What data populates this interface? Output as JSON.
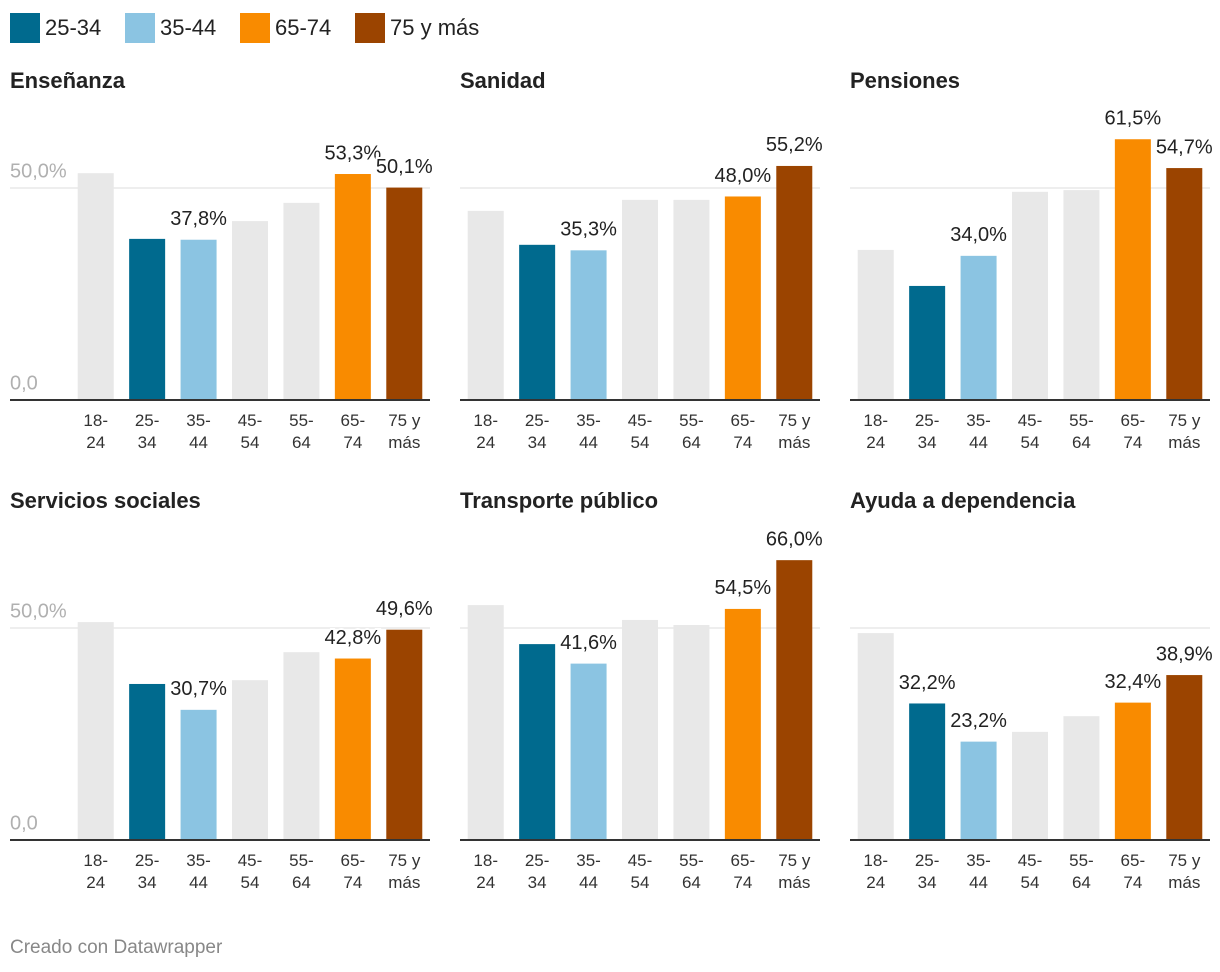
{
  "legend": [
    {
      "name": "25-34",
      "color": "#006a8e"
    },
    {
      "name": "35-44",
      "color": "#8bc4e2"
    },
    {
      "name": "65-74",
      "color": "#f98b00"
    },
    {
      "name": "75 y más",
      "color": "#9b4400"
    }
  ],
  "chart_data": [
    {
      "type": "bar",
      "title": "Enseñanza",
      "categories": [
        "18-24",
        "25-34",
        "35-44",
        "45-54",
        "55-64",
        "65-74",
        "75 y más"
      ],
      "values": [
        53.5,
        38.0,
        37.8,
        42.2,
        46.5,
        53.3,
        50.1
      ],
      "value_labels": [
        null,
        null,
        "37,8%",
        null,
        null,
        "53,3%",
        "50,1%"
      ],
      "colors": [
        "#e8e8e8",
        "#006a8e",
        "#8bc4e2",
        "#e8e8e8",
        "#e8e8e8",
        "#f98b00",
        "#9b4400"
      ],
      "ylim": [
        0,
        70
      ],
      "yticks": [
        {
          "value": 0,
          "label": "0,0"
        },
        {
          "value": 50,
          "label": "50,0%"
        }
      ]
    },
    {
      "type": "bar",
      "title": "Sanidad",
      "categories": [
        "18-24",
        "25-34",
        "35-44",
        "45-54",
        "55-64",
        "65-74",
        "75 y más"
      ],
      "values": [
        44.6,
        36.6,
        35.3,
        47.2,
        47.2,
        48.0,
        55.2
      ],
      "value_labels": [
        null,
        null,
        "35,3%",
        null,
        null,
        "48,0%",
        "55,2%"
      ],
      "colors": [
        "#e8e8e8",
        "#006a8e",
        "#8bc4e2",
        "#e8e8e8",
        "#e8e8e8",
        "#f98b00",
        "#9b4400"
      ],
      "ylim": [
        0,
        70
      ],
      "gridlines": [
        50
      ]
    },
    {
      "type": "bar",
      "title": "Pensiones",
      "categories": [
        "18-24",
        "25-34",
        "35-44",
        "45-54",
        "55-64",
        "65-74",
        "75 y más"
      ],
      "values": [
        35.4,
        26.9,
        34.0,
        49.1,
        49.5,
        61.5,
        54.7
      ],
      "value_labels": [
        null,
        null,
        "34,0%",
        null,
        null,
        "61,5%",
        "54,7%"
      ],
      "colors": [
        "#e8e8e8",
        "#006a8e",
        "#8bc4e2",
        "#e8e8e8",
        "#e8e8e8",
        "#f98b00",
        "#9b4400"
      ],
      "ylim": [
        0,
        70
      ],
      "gridlines": [
        50
      ]
    },
    {
      "type": "bar",
      "title": "Servicios sociales",
      "categories": [
        "18-24",
        "25-34",
        "35-44",
        "45-54",
        "55-64",
        "65-74",
        "75 y más"
      ],
      "values": [
        51.4,
        36.8,
        30.7,
        37.7,
        44.3,
        42.8,
        49.6
      ],
      "value_labels": [
        null,
        null,
        "30,7%",
        null,
        null,
        "42,8%",
        "49,6%"
      ],
      "colors": [
        "#e8e8e8",
        "#006a8e",
        "#8bc4e2",
        "#e8e8e8",
        "#e8e8e8",
        "#f98b00",
        "#9b4400"
      ],
      "ylim": [
        0,
        70
      ],
      "yticks": [
        {
          "value": 0,
          "label": "0,0"
        },
        {
          "value": 50,
          "label": "50,0%"
        }
      ]
    },
    {
      "type": "bar",
      "title": "Transporte público",
      "categories": [
        "18-24",
        "25-34",
        "35-44",
        "45-54",
        "55-64",
        "65-74",
        "75 y más"
      ],
      "values": [
        55.4,
        46.2,
        41.6,
        51.9,
        50.7,
        54.5,
        66.0
      ],
      "value_labels": [
        null,
        null,
        "41,6%",
        null,
        null,
        "54,5%",
        "66,0%"
      ],
      "colors": [
        "#e8e8e8",
        "#006a8e",
        "#8bc4e2",
        "#e8e8e8",
        "#e8e8e8",
        "#f98b00",
        "#9b4400"
      ],
      "ylim": [
        0,
        70
      ],
      "gridlines": [
        50
      ]
    },
    {
      "type": "bar",
      "title": "Ayuda a dependencia",
      "categories": [
        "18-24",
        "25-34",
        "35-44",
        "45-54",
        "55-64",
        "65-74",
        "75 y más"
      ],
      "values": [
        48.8,
        32.2,
        23.2,
        25.5,
        29.2,
        32.4,
        38.9
      ],
      "value_labels": [
        null,
        "32,2%",
        "23,2%",
        null,
        null,
        "32,4%",
        "38,9%"
      ],
      "colors": [
        "#e8e8e8",
        "#006a8e",
        "#8bc4e2",
        "#e8e8e8",
        "#e8e8e8",
        "#f98b00",
        "#9b4400"
      ],
      "ylim": [
        0,
        70
      ],
      "gridlines": [
        50
      ]
    }
  ],
  "footer": "Creado con Datawrapper"
}
